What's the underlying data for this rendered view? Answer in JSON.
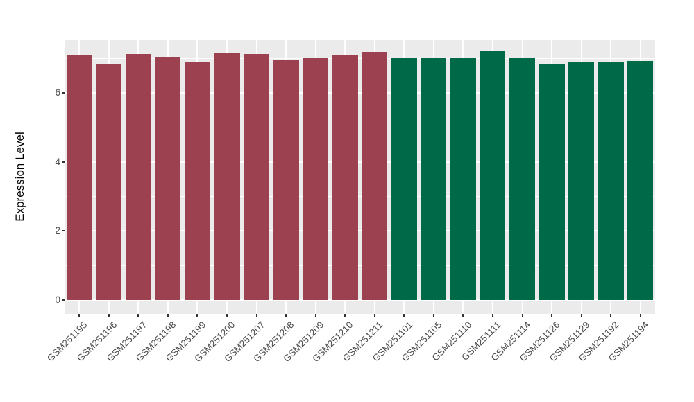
{
  "figure": {
    "background_color": "#FFFFFF",
    "panel_background_color": "#EBEBEB",
    "gridline_color": "#FFFFFF",
    "tick_label_color": "#4D4D4D",
    "tick_mark_color": "#333333",
    "axis_title_color": "#000000"
  },
  "chart_data": {
    "type": "bar",
    "title": "",
    "xlabel": "",
    "ylabel": "Expression Level",
    "legend": "none",
    "grid": "major and minor horizontal white gridlines, vertical white gridlines at each category",
    "ylim": [
      -0.4,
      7.55
    ],
    "y_ticks": [
      0,
      2,
      4,
      6
    ],
    "y_minor_gridlines": [
      1,
      3,
      5,
      7
    ],
    "categories": [
      "GSM251195",
      "GSM251196",
      "GSM251197",
      "GSM251198",
      "GSM251199",
      "GSM251200",
      "GSM251207",
      "GSM251208",
      "GSM251209",
      "GSM251210",
      "GSM251211",
      "GSM251101",
      "GSM251105",
      "GSM251110",
      "GSM251111",
      "GSM251114",
      "GSM251126",
      "GSM251129",
      "GSM251192",
      "GSM251194"
    ],
    "values": [
      7.08,
      6.82,
      7.12,
      7.05,
      6.9,
      7.16,
      7.12,
      6.95,
      7.0,
      7.09,
      7.18,
      7.0,
      7.02,
      7.01,
      7.2,
      7.02,
      6.82,
      6.89,
      6.89,
      6.93
    ],
    "bar_group_index": [
      0,
      0,
      0,
      0,
      0,
      0,
      0,
      0,
      0,
      0,
      0,
      1,
      1,
      1,
      1,
      1,
      1,
      1,
      1,
      1
    ],
    "groups": [
      {
        "name": "group-1",
        "color": "#9C4150"
      },
      {
        "name": "group-2",
        "color": "#006A48"
      }
    ]
  }
}
